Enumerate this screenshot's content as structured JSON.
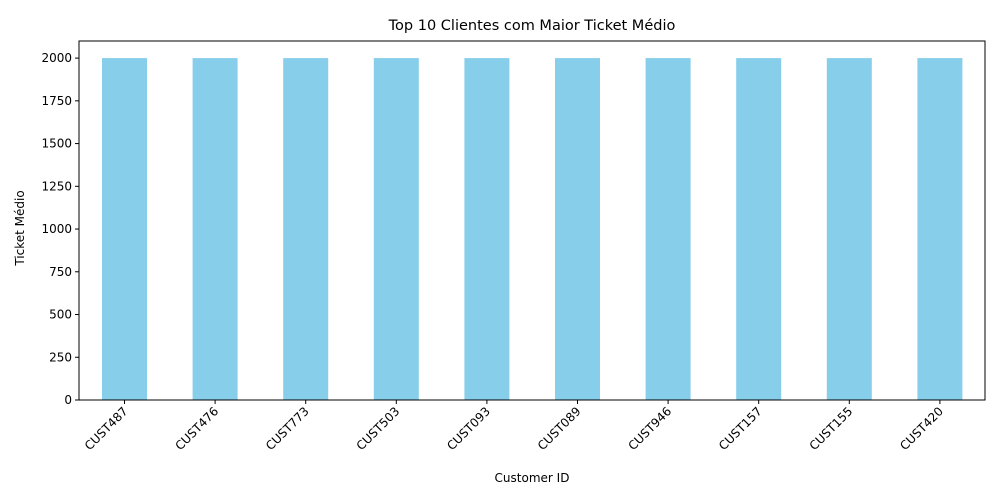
{
  "chart_data": {
    "type": "bar",
    "title": "Top 10 Clientes com Maior Ticket Médio",
    "xlabel": "Customer ID",
    "ylabel": "Ticket Médio",
    "categories": [
      "CUST487",
      "CUST476",
      "CUST773",
      "CUST503",
      "CUST093",
      "CUST089",
      "CUST946",
      "CUST157",
      "CUST155",
      "CUST420"
    ],
    "values": [
      2000,
      2000,
      2000,
      2000,
      2000,
      2000,
      2000,
      2000,
      2000,
      2000
    ],
    "ylim": [
      0,
      2100
    ],
    "yticks": [
      0,
      250,
      500,
      750,
      1000,
      1250,
      1500,
      1750,
      2000
    ],
    "grid": false,
    "bar_color": "#87CEEB"
  }
}
